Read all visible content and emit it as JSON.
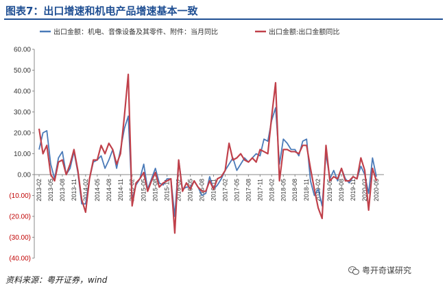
{
  "title": "图表7：出口增速和机电产品增速基本一致",
  "source": "资料来源：粤开证券，wind",
  "watermark": "粤开奇谋研究",
  "colors": {
    "series1": "#4a7ab8",
    "series2": "#c0404a",
    "title": "#1f4f93",
    "negative_tick": "#c00000"
  },
  "chart_data": {
    "type": "line",
    "ylim": [
      -40,
      60
    ],
    "yticks": [
      {
        "value": 60,
        "label": "60.00"
      },
      {
        "value": 50,
        "label": "50.00"
      },
      {
        "value": 40,
        "label": "40.00"
      },
      {
        "value": 30,
        "label": "30.00"
      },
      {
        "value": 20,
        "label": "20.00"
      },
      {
        "value": 10,
        "label": "10.00"
      },
      {
        "value": 0,
        "label": "0.00"
      },
      {
        "value": -10,
        "label": "(10.00)"
      },
      {
        "value": -20,
        "label": "(20.00)"
      },
      {
        "value": -30,
        "label": "(30.00)"
      },
      {
        "value": -40,
        "label": "(40.00)"
      }
    ],
    "xtick_labels": [
      "2013-02",
      "2013-05",
      "2013-08",
      "2013-11",
      "2014-02",
      "2014-05",
      "2014-08",
      "2014-11",
      "2015-02",
      "2015-05",
      "2015-08",
      "2015-11",
      "2016-02",
      "2016-05",
      "2016-08",
      "2016-11",
      "2017-02",
      "2017-05",
      "2017-08",
      "2017-11",
      "2018-02",
      "2018-05",
      "2018-08",
      "2018-11",
      "2019-02",
      "2019-05",
      "2019-08",
      "2019-11",
      "2020-02",
      "2020-05"
    ],
    "x_start": "2013-02",
    "legend_position": "top",
    "series": [
      {
        "name": "出口金额：机电、音像设备及其零件、附件：当月同比",
        "values": [
          12,
          20,
          21,
          5,
          -2,
          8,
          11,
          0,
          3,
          11,
          1,
          -14,
          -14,
          -2,
          6,
          7,
          9,
          3,
          7,
          12,
          3,
          12,
          22,
          28,
          -12,
          -5,
          -2,
          5,
          -7,
          -2,
          3,
          -4,
          -5,
          -2,
          -2,
          -20,
          7,
          -7,
          -6,
          -6,
          -3,
          -6,
          -10,
          -9,
          -1,
          -7,
          -5,
          -2,
          2,
          5,
          8,
          2,
          5,
          8,
          6,
          8,
          10,
          9,
          17,
          16,
          26,
          32,
          5,
          17,
          15,
          12,
          12,
          9,
          16,
          17,
          -3,
          -10,
          -7,
          -15,
          10,
          -2,
          2,
          -3,
          3,
          -2,
          -4,
          -1,
          -2,
          4,
          0,
          -9,
          8,
          -1
        ],
        "color": "#4a7ab8"
      },
      {
        "name": "出口金额:出口金额同比",
        "values": [
          22,
          10,
          14,
          0,
          -3,
          6,
          7,
          0,
          5,
          12,
          2,
          -12,
          -18,
          -2,
          7,
          7,
          14,
          10,
          15,
          12,
          5,
          10,
          28,
          48,
          -15,
          -4,
          -2,
          1,
          -8,
          -3,
          1,
          -6,
          -4,
          -3,
          -2,
          -28,
          7,
          -8,
          -4,
          -7,
          -3,
          -6,
          -8,
          -8,
          -3,
          -7,
          -2,
          -1,
          2,
          15,
          7,
          8,
          10,
          7,
          6,
          8,
          6,
          12,
          11,
          10,
          28,
          44,
          -3,
          12,
          12,
          11,
          11,
          10,
          14,
          14,
          3,
          -7,
          -16,
          -21,
          14,
          -3,
          -1,
          -2,
          3,
          -3,
          -3,
          -1,
          -2,
          8,
          2,
          -17,
          3,
          -3
        ],
        "color": "#c0404a"
      }
    ]
  }
}
